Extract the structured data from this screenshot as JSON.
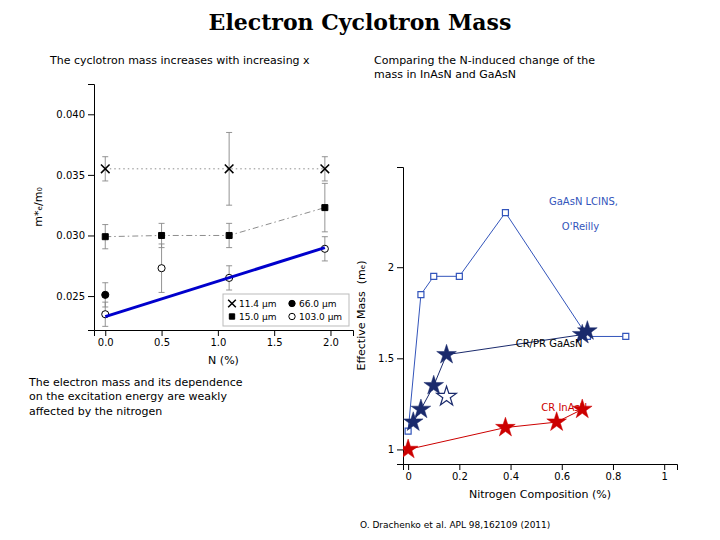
{
  "chart_data": [
    {
      "type": "line",
      "title": "Electron Cyclotron Mass",
      "subtitle": "The cyclotron mass increases with increasing x",
      "xlabel": "N (%)",
      "ylabel": "m*ₑ/m₀",
      "xlim": [
        -0.1,
        2.2
      ],
      "ylim": [
        0.0222,
        0.0425
      ],
      "xticks": [
        {
          "value": 0,
          "label": "0.0"
        },
        0.5,
        {
          "value": 1,
          "label": "1.0"
        },
        1.5,
        {
          "value": 2,
          "label": "2.0"
        }
      ],
      "yticks": [
        0.025,
        {
          "value": 0.03,
          "label": "0.030"
        },
        0.035,
        {
          "value": 0.04,
          "label": "0.040"
        }
      ],
      "grid": false,
      "legend": "lower right",
      "series": [
        {
          "name": "11.4 μm",
          "color": "black",
          "marker": "x",
          "line_style": "dotted",
          "x": [
            0.0,
            1.1,
            1.95
          ],
          "values": [
            0.0355,
            0.0355,
            0.0355
          ],
          "yerr": [
            0.001,
            0.003,
            0.001
          ]
        },
        {
          "name": "15.0 μm",
          "color": "black",
          "marker": "square",
          "line_style": "dashdot",
          "x": [
            0.0,
            0.5,
            1.1,
            1.95
          ],
          "values": [
            0.0299,
            0.03,
            0.03,
            0.0323
          ],
          "yerr": [
            0.001,
            0.001,
            0.001,
            0.002
          ]
        },
        {
          "name": "66.0 μm",
          "color": "black",
          "marker": "circle",
          "line_style": "none",
          "x": [
            0.0
          ],
          "values": [
            0.0251
          ],
          "yerr": [
            0.001
          ]
        },
        {
          "name": "103.0 μm",
          "color": "black",
          "marker": "circle-open",
          "line_style": "none",
          "x": [
            0.0,
            0.5,
            1.1,
            1.95
          ],
          "values": [
            0.0235,
            0.0273,
            0.0265,
            0.0289
          ],
          "yerr": [
            0.001,
            0.002,
            0.001,
            0.001
          ]
        },
        {
          "color": "#0000cc",
          "line_style": "solid",
          "x": [
            0.0,
            1.95
          ],
          "values": [
            0.0233,
            0.029
          ]
        }
      ],
      "annotations": [
        {
          "text": "The electron mass and its dependence\non the excitation energy are weakly\naffected by the nitrogen"
        }
      ]
    },
    {
      "type": "line",
      "xlabel": "Nitrogen Composition (%)",
      "ylabel": "Effective Mass  (mₑ)",
      "xlim": [
        -0.02,
        1.05
      ],
      "ylim": [
        0.92,
        2.55
      ],
      "xticks": [
        0,
        0.2,
        0.4,
        0.6,
        0.8,
        1
      ],
      "yticks": [
        1,
        1.5,
        2
      ],
      "grid": false,
      "series": [
        {
          "color": "#3355bb",
          "marker": "square-open",
          "line_style": "solid",
          "x": [
            0.0,
            0.05,
            0.1,
            0.2,
            0.38,
            0.7,
            0.85
          ],
          "values": [
            1.1,
            1.85,
            1.95,
            1.95,
            2.3,
            1.62,
            1.62
          ]
        },
        {
          "color": "#1a2a6c",
          "marker": "star",
          "line_style": "solid",
          "x": [
            0.02,
            0.05,
            0.1,
            0.15,
            0.68,
            0.7
          ],
          "values": [
            1.15,
            1.22,
            1.35,
            1.52,
            1.63,
            1.65
          ]
        },
        {
          "color": "#cc0000",
          "marker": "star",
          "line_style": "solid",
          "x": [
            0.0,
            0.38,
            0.58,
            0.68
          ],
          "values": [
            1.0,
            1.12,
            1.15,
            1.22
          ]
        },
        {
          "color": "#1a2a6c",
          "marker": "star-open",
          "line_style": "none",
          "x": [
            0.15
          ],
          "values": [
            1.29
          ]
        }
      ],
      "annotations": [
        {
          "text": "Comparing the N-induced change of the\nmass in InAsN and GaAsN"
        },
        {
          "text": "O. Drachenko et al. APL 98,162109 (2011)"
        },
        {
          "text": "GaAsN LCINS,",
          "x": 0.55,
          "y": 2.38,
          "color": "#3355bb"
        },
        {
          "text": "O'Reilly",
          "x": 0.6,
          "y": 2.24,
          "color": "#3355bb"
        },
        {
          "text": "CR/PR GaAsN",
          "x": 0.42,
          "y": 1.6,
          "color": "black"
        },
        {
          "text": "CR InAsN",
          "x": 0.52,
          "y": 1.25,
          "color": "#cc0000"
        }
      ]
    }
  ]
}
